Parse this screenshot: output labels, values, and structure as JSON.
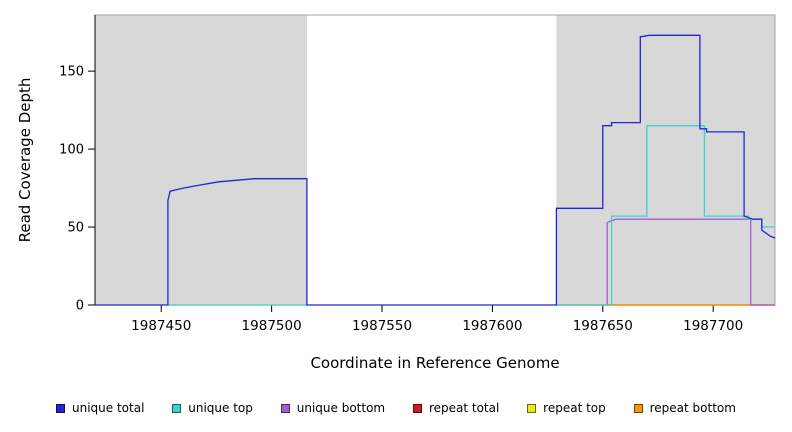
{
  "chart_data": {
    "type": "line",
    "title": "",
    "xlabel": "Coordinate in Reference Genome",
    "ylabel": "Read Coverage Depth",
    "xlim": [
      1987420,
      1987728
    ],
    "ylim": [
      0,
      186
    ],
    "x_ticks": [
      1987450,
      1987500,
      1987550,
      1987600,
      1987650,
      1987700
    ],
    "y_ticks": [
      0,
      50,
      100,
      150
    ],
    "grid": false,
    "legend_position": "bottom",
    "plot_bg": "#ffffff",
    "border_color": "#a6a6a6",
    "background_regions": [
      {
        "name": "left-gray-region",
        "x0": 1987420,
        "x1": 1987516,
        "color": "#d8d8d8"
      },
      {
        "name": "right-gray-region",
        "x0": 1987629,
        "x1": 1987728,
        "color": "#d8d8d8"
      }
    ],
    "series": [
      {
        "name": "repeat top",
        "color": "#e8e81a",
        "segments": [
          [
            [
              1987453,
              0
            ],
            [
              1987516,
              0
            ]
          ],
          [
            [
              1987629,
              0
            ],
            [
              1987728,
              0
            ]
          ]
        ]
      },
      {
        "name": "repeat total",
        "color": "#cc1a1a",
        "segments": [
          [
            [
              1987629,
              0
            ],
            [
              1987728,
              0
            ]
          ]
        ]
      },
      {
        "name": "repeat bottom",
        "color": "#f5990f",
        "segments": [
          [
            [
              1987652,
              0
            ],
            [
              1987724,
              0
            ]
          ]
        ]
      },
      {
        "name": "unique bottom",
        "color": "#a05fd0",
        "segments": [
          [
            [
              1987652,
              0
            ],
            [
              1987652,
              53
            ],
            [
              1987656,
              55
            ],
            [
              1987717,
              55
            ],
            [
              1987717,
              0
            ],
            [
              1987728,
              0
            ]
          ]
        ]
      },
      {
        "name": "unique top",
        "color": "#3fd0d0",
        "segments": [
          [
            [
              1987453,
              0
            ],
            [
              1987516,
              0
            ]
          ],
          [
            [
              1987629,
              0
            ],
            [
              1987654,
              0
            ],
            [
              1987654,
              57
            ],
            [
              1987670,
              57
            ],
            [
              1987670,
              115
            ],
            [
              1987696,
              115
            ],
            [
              1987696,
              57
            ],
            [
              1987716,
              57
            ],
            [
              1987716,
              55
            ],
            [
              1987722,
              55
            ],
            [
              1987722,
              50
            ],
            [
              1987728,
              50
            ]
          ]
        ]
      },
      {
        "name": "unique total",
        "color": "#2424d2",
        "segments": [
          [
            [
              1987420,
              0
            ],
            [
              1987453,
              0
            ],
            [
              1987453,
              67
            ],
            [
              1987454,
              73
            ],
            [
              1987460,
              75
            ],
            [
              1987468,
              77
            ],
            [
              1987476,
              79
            ],
            [
              1987484,
              80
            ],
            [
              1987492,
              81
            ],
            [
              1987516,
              81
            ],
            [
              1987516,
              0
            ],
            [
              1987629,
              0
            ],
            [
              1987629,
              62
            ],
            [
              1987650,
              62
            ],
            [
              1987650,
              115
            ],
            [
              1987654,
              115
            ],
            [
              1987654,
              117
            ],
            [
              1987667,
              117
            ],
            [
              1987667,
              172
            ],
            [
              1987671,
              173
            ],
            [
              1987694,
              173
            ],
            [
              1987694,
              113
            ],
            [
              1987697,
              113
            ],
            [
              1987697,
              111
            ],
            [
              1987714,
              111
            ],
            [
              1987714,
              57
            ],
            [
              1987718,
              55
            ],
            [
              1987722,
              55
            ],
            [
              1987722,
              48
            ],
            [
              1987726,
              44
            ],
            [
              1987728,
              43
            ]
          ]
        ]
      }
    ],
    "legend": [
      {
        "label": "unique total",
        "color": "#2424d2"
      },
      {
        "label": "unique top",
        "color": "#3fd0d0"
      },
      {
        "label": "unique bottom",
        "color": "#a05fd0"
      },
      {
        "label": "repeat total",
        "color": "#cc1a1a"
      },
      {
        "label": "repeat top",
        "color": "#e8e81a"
      },
      {
        "label": "repeat bottom",
        "color": "#f5990f"
      }
    ]
  }
}
